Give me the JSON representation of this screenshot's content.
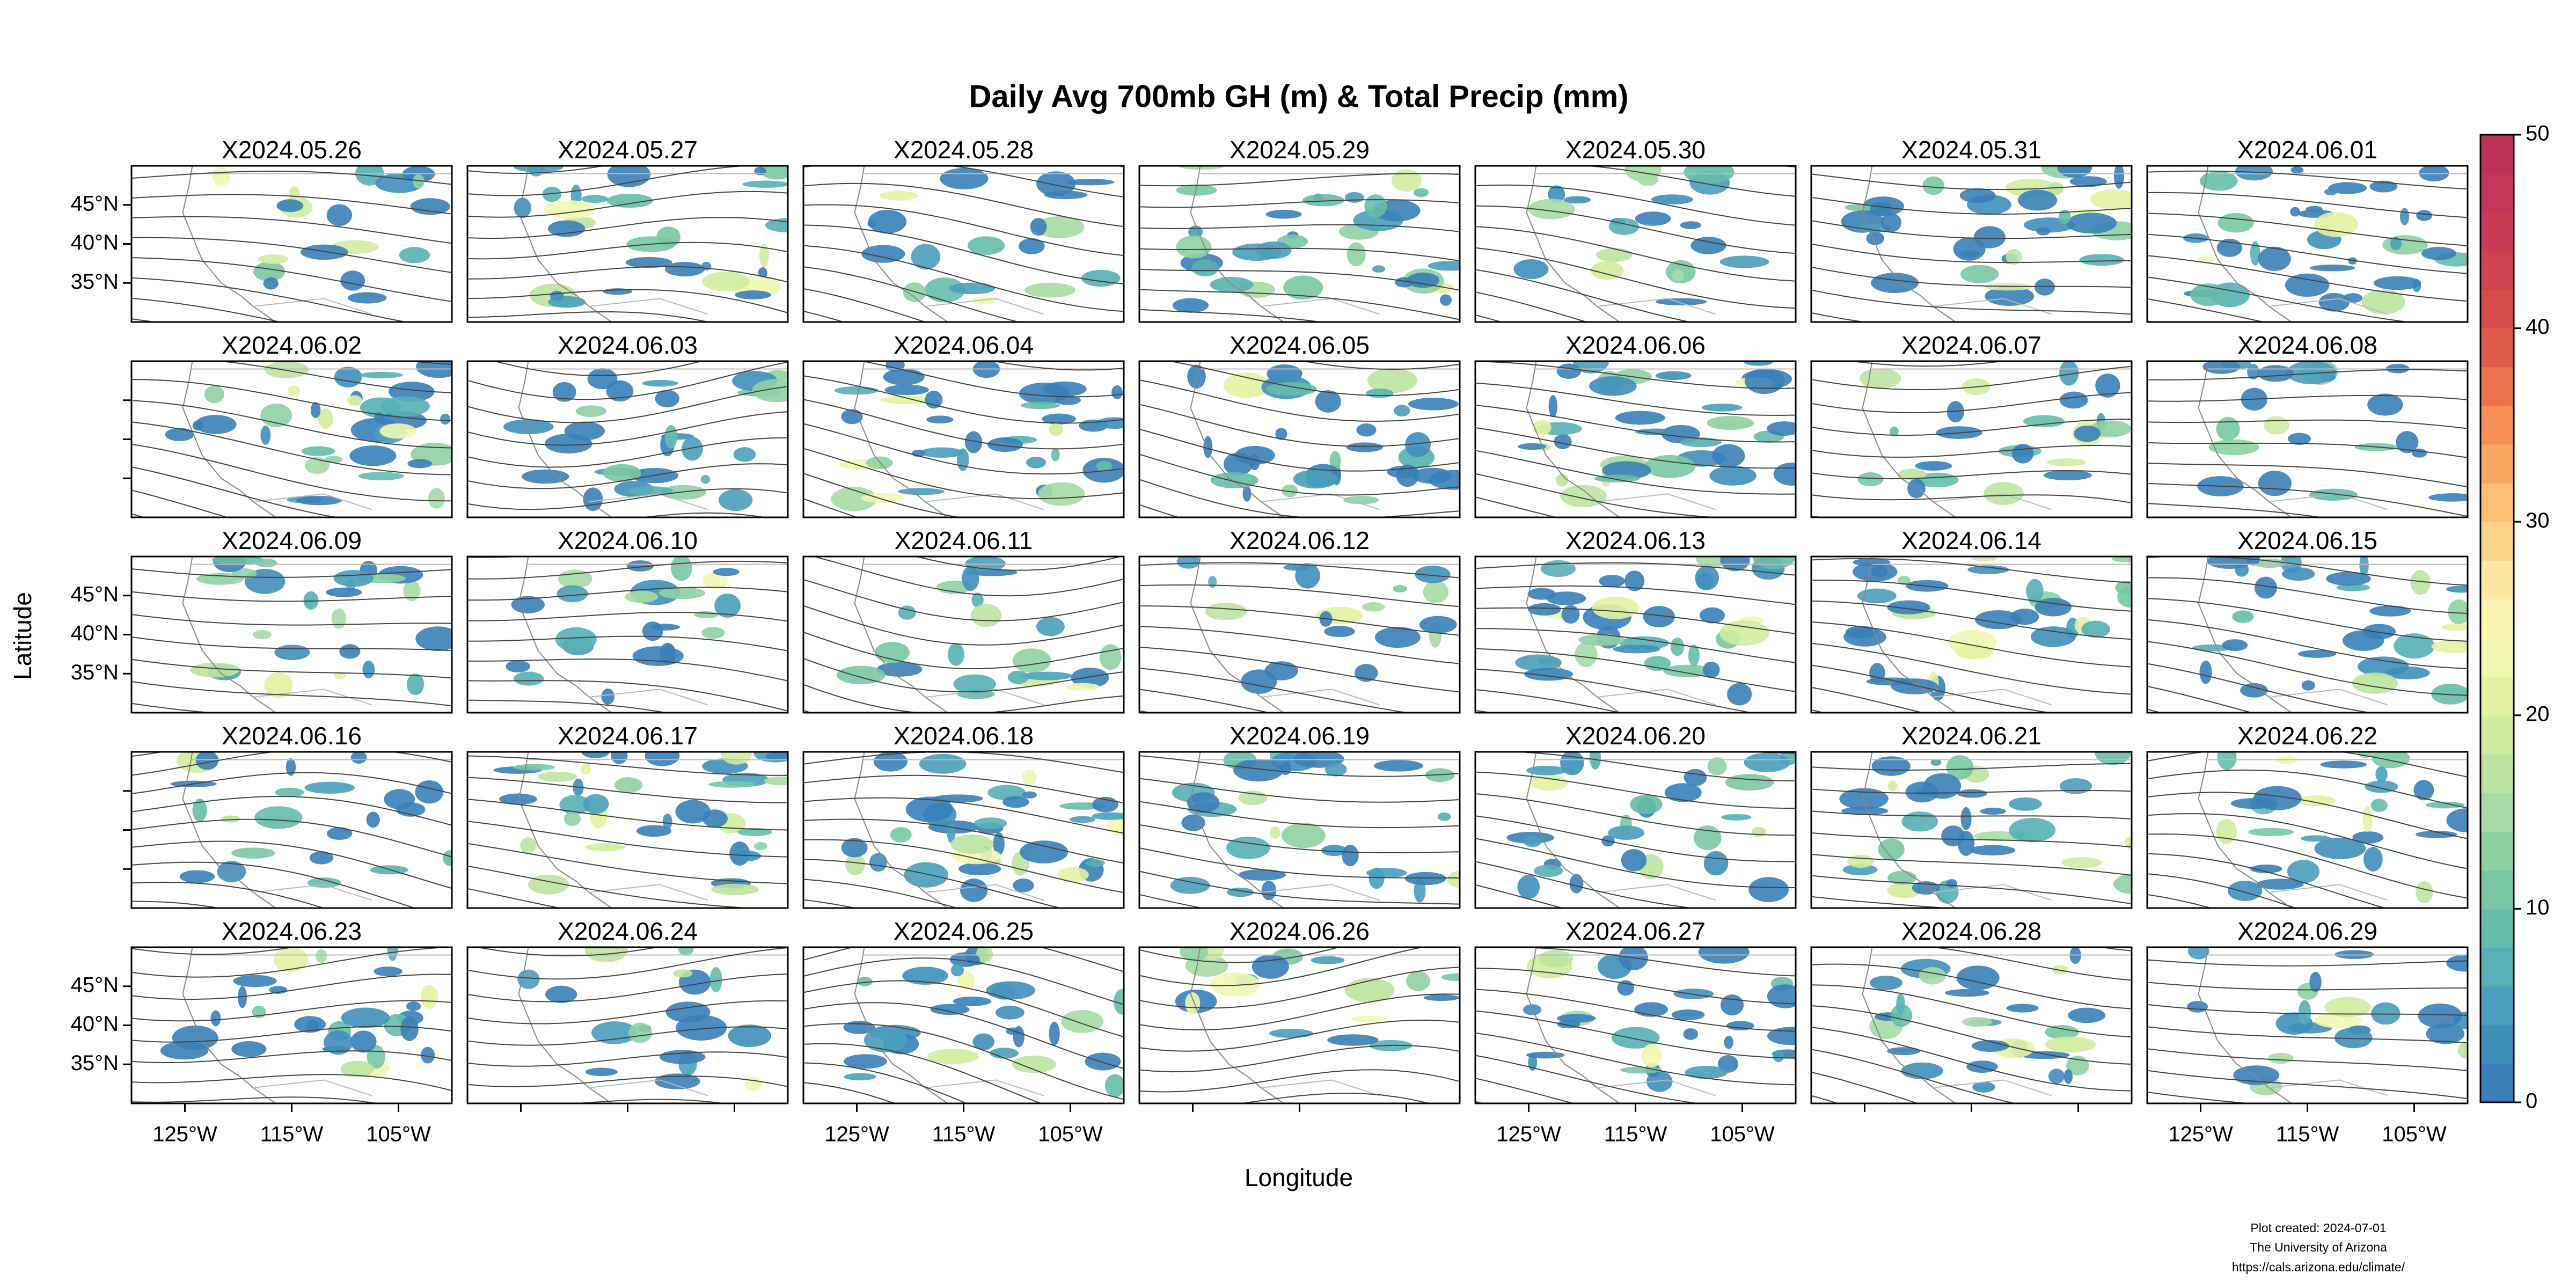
{
  "chart_data": {
    "type": "map-panels",
    "title": "Daily Avg 700mb GH (m) & Total Precip (mm)",
    "panels": [
      "X2024.05.26",
      "X2024.05.27",
      "X2024.05.28",
      "X2024.05.29",
      "X2024.05.30",
      "X2024.05.31",
      "X2024.06.01",
      "X2024.06.02",
      "X2024.06.03",
      "X2024.06.04",
      "X2024.06.05",
      "X2024.06.06",
      "X2024.06.07",
      "X2024.06.08",
      "X2024.06.09",
      "X2024.06.10",
      "X2024.06.11",
      "X2024.06.12",
      "X2024.06.13",
      "X2024.06.14",
      "X2024.06.15",
      "X2024.06.16",
      "X2024.06.17",
      "X2024.06.18",
      "X2024.06.19",
      "X2024.06.20",
      "X2024.06.21",
      "X2024.06.22",
      "X2024.06.23",
      "X2024.06.24",
      "X2024.06.25",
      "X2024.06.26",
      "X2024.06.27",
      "X2024.06.28",
      "X2024.06.29"
    ],
    "xlabel": "Longitude",
    "ylabel": "Latitude",
    "xlim": [
      -130,
      -100
    ],
    "xticks": [
      {
        "value": -125,
        "label": "125°W"
      },
      {
        "value": -115,
        "label": "115°W"
      },
      {
        "value": -105,
        "label": "105°W"
      }
    ],
    "ylim": [
      30,
      50
    ],
    "yticks": [
      {
        "value": 35,
        "label": "35°N"
      },
      {
        "value": 40,
        "label": "40°N"
      },
      {
        "value": 45,
        "label": "45°N"
      }
    ],
    "colorbar": {
      "lim": [
        0,
        50
      ],
      "ticks": [
        0,
        10,
        20,
        30,
        40,
        50
      ],
      "colors": [
        "#3a7fb8",
        "#3f8fbb",
        "#4a9fbc",
        "#56b0b5",
        "#66bdaa",
        "#79c8a3",
        "#8fd1a2",
        "#a6dba4",
        "#bce4a0",
        "#d0ec9f",
        "#e2f2a2",
        "#f0f7b0",
        "#fbf4b0",
        "#fde6a0",
        "#fdd38a",
        "#fdbf73",
        "#fba762",
        "#f68e56",
        "#ec744d",
        "#de5d4a",
        "#d54c4a",
        "#cf4250",
        "#c93b55",
        "#c23657",
        "#bb3158"
      ]
    }
  },
  "footer": [
    "Plot created: 2024-07-01",
    "The University of Arizona",
    "https://cals.arizona.edu/climate/"
  ]
}
